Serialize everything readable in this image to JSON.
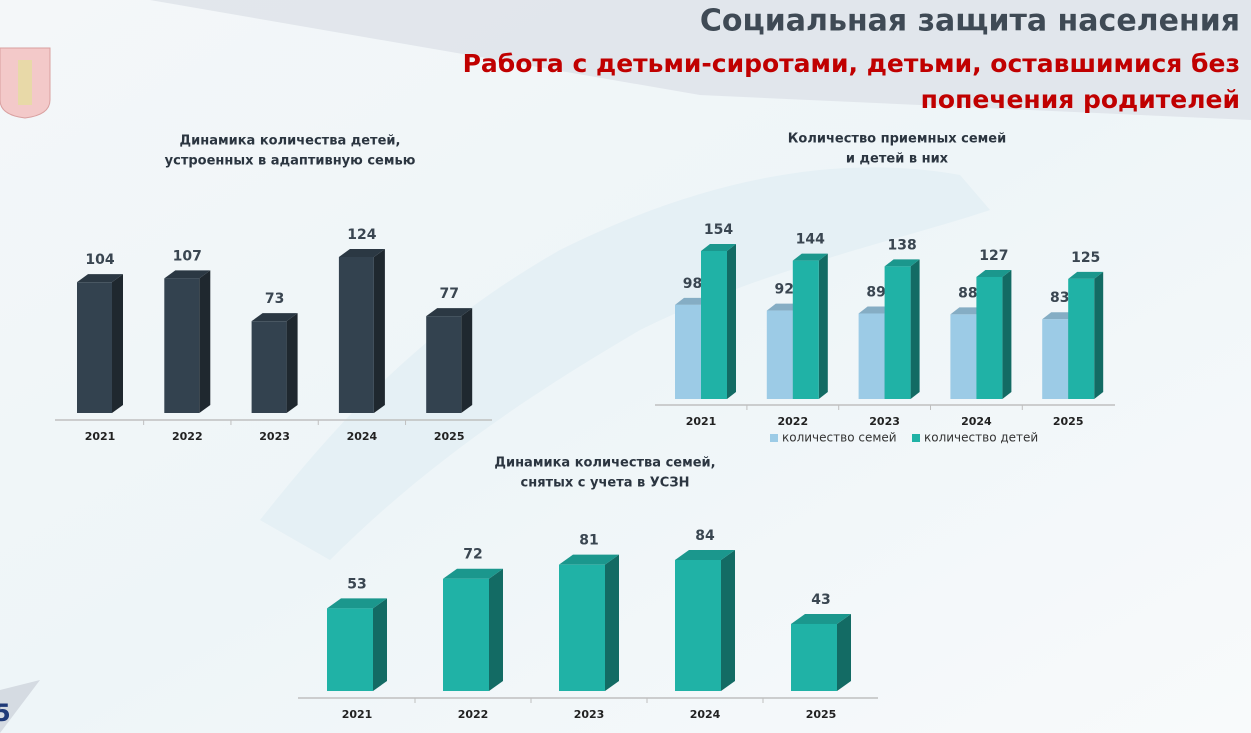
{
  "header": {
    "title": "Социальная защита населения",
    "subtitle": [
      "Работа с детьми-сиротами, детьми, оставшимися без",
      "попечения родителей"
    ]
  },
  "page_number": "5",
  "chart_data": [
    {
      "type": "bar",
      "title": [
        "Динамика количества детей,",
        "устроенных в адаптивную семью"
      ],
      "categories": [
        "2021",
        "2022",
        "2023",
        "2024",
        "2025"
      ],
      "values": [
        104,
        107,
        73,
        124,
        77
      ],
      "color": "#33424f"
    },
    {
      "type": "bar",
      "title": [
        "Количество  приемных семей",
        "и детей в них"
      ],
      "categories": [
        "2021",
        "2022",
        "2023",
        "2024",
        "2025"
      ],
      "series": [
        {
          "name": "количество семей",
          "color": "#9ccbe6",
          "values": [
            98,
            92,
            89,
            88,
            83
          ]
        },
        {
          "name": "количество детей",
          "color": "#20b2a6",
          "values": [
            154,
            144,
            138,
            127,
            125
          ]
        }
      ]
    },
    {
      "type": "bar",
      "title": [
        "Динамика количества семей,",
        "снятых с учета в УСЗН"
      ],
      "categories": [
        "2021",
        "2022",
        "2023",
        "2024",
        "2025"
      ],
      "values": [
        53,
        72,
        81,
        84,
        43
      ],
      "color": "#20b2a6"
    }
  ]
}
